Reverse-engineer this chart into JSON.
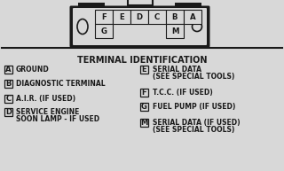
{
  "bg_color": "#d8d8d8",
  "title": "TERMINAL IDENTIFICATION",
  "left_entries": [
    {
      "label": "A",
      "desc": "GROUND"
    },
    {
      "label": "B",
      "desc": "DIAGNOSTIC TERMINAL"
    },
    {
      "label": "C",
      "desc": "A.I.R. (IF USED)"
    },
    {
      "label": "D",
      "desc": "SERVICE ENGINE\nSOON LAMP - IF USED"
    }
  ],
  "right_entries": [
    {
      "label": "E",
      "desc": "SERIAL DATA\n(SEE SPECIAL TOOLS)"
    },
    {
      "label": "F",
      "desc": "T.C.C. (IF USED)"
    },
    {
      "label": "G",
      "desc": "FUEL PUMP (IF USED)"
    },
    {
      "label": "M",
      "desc": "SERIAL DATA (IF USED)\n(SEE SPECIAL TOOLS)"
    }
  ],
  "connector_top_labels": [
    "F",
    "E",
    "D",
    "C",
    "B",
    "A"
  ],
  "connector_bottom_labels": [
    "G",
    "",
    "",
    "",
    "M",
    ""
  ],
  "font_color": "#1a1a1a",
  "box_color": "#1a1a1a",
  "title_fontsize": 7.0,
  "label_fontsize": 6.0,
  "desc_fontsize": 5.5
}
